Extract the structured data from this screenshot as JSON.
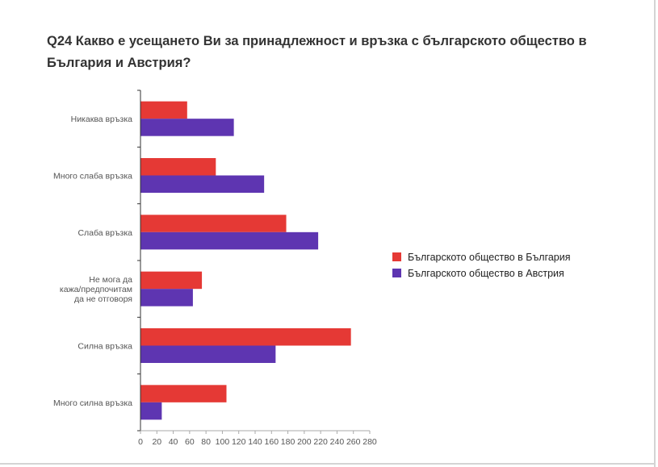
{
  "colors": {
    "series1": "#e53935",
    "series2": "#5e35b1",
    "axis": "#333333"
  },
  "chart_data": {
    "type": "bar",
    "orientation": "horizontal",
    "title": "Q24 Какво е усещането Ви за принадлежност и връзка с българското общество в България и Австрия?",
    "categories": [
      [
        "Никаква връзка"
      ],
      [
        "Много слаба връзка"
      ],
      [
        "Слаба връзка"
      ],
      [
        "Не мога да",
        "кажа/предпочитам",
        "да не отговоря"
      ],
      [
        "Силна връзка"
      ],
      [
        "Много силна връзка"
      ]
    ],
    "series": [
      {
        "name": "Българското общество в България",
        "values": [
          57,
          92,
          178,
          75,
          257,
          105
        ]
      },
      {
        "name": "Българското общество в Австрия",
        "values": [
          114,
          151,
          217,
          64,
          165,
          26
        ]
      }
    ],
    "xlim": [
      0,
      280
    ],
    "xticks": [
      0,
      20,
      40,
      60,
      80,
      100,
      120,
      140,
      160,
      180,
      200,
      220,
      240,
      260,
      280
    ],
    "grid": false,
    "legend_position": "right"
  }
}
